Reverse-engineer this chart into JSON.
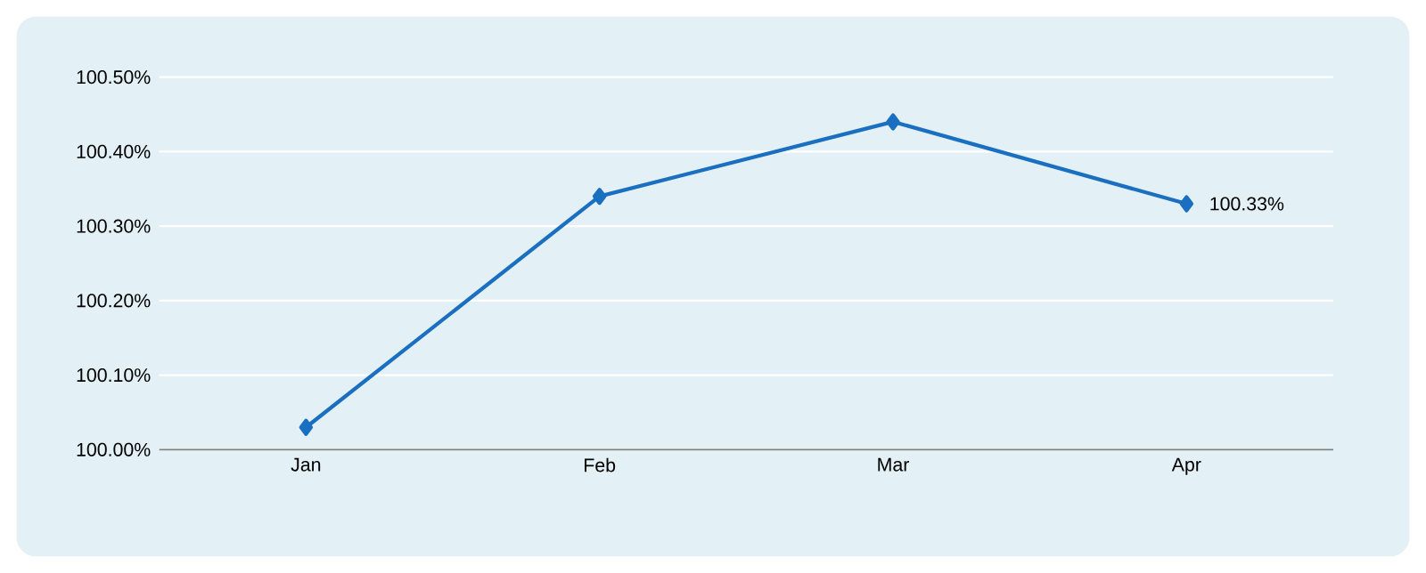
{
  "chart_data": {
    "type": "line",
    "categories": [
      "Jan",
      "Feb",
      "Mar",
      "Apr"
    ],
    "series": [
      {
        "color": "#1a6fc0",
        "values": [
          100.03,
          100.34,
          100.44,
          100.33
        ],
        "value_labels": [
          null,
          null,
          null,
          "100.33%"
        ]
      }
    ],
    "ylim": [
      100.0,
      100.5
    ],
    "yticks": [
      {
        "value": 100.0,
        "label": "100.00%"
      },
      {
        "value": 100.1,
        "label": "100.10%"
      },
      {
        "value": 100.2,
        "label": "100.20%"
      },
      {
        "value": 100.3,
        "label": "100.30%"
      },
      {
        "value": 100.4,
        "label": "100.40%"
      },
      {
        "value": 100.5,
        "label": "100.50%"
      }
    ],
    "grid": "y",
    "marker": "diamond",
    "line_style": "solid"
  }
}
